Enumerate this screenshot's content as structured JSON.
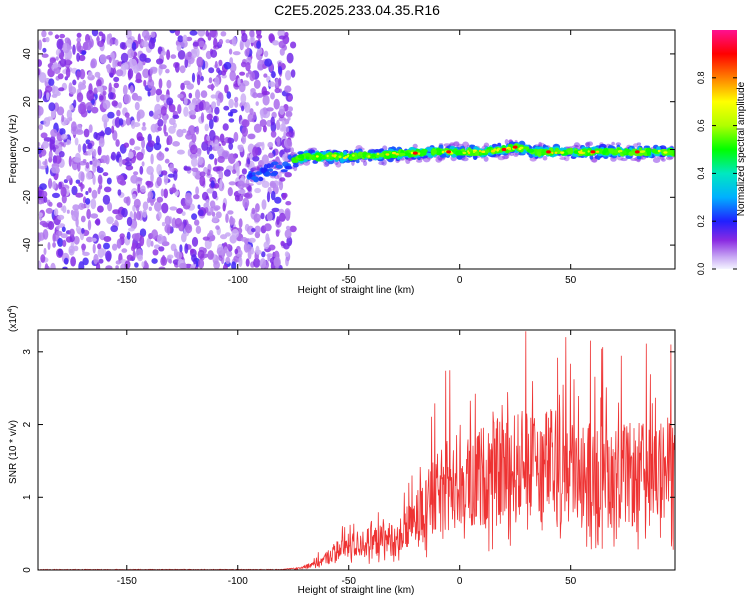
{
  "title": "C2E5.2025.233.04.35.R16",
  "chart_data": [
    {
      "type": "heatmap",
      "name": "spectrogram",
      "xlabel": "Height of straight line (km)",
      "ylabel": "Frequency (Hz)",
      "xlim": [
        -190,
        97
      ],
      "ylim": [
        -50,
        50
      ],
      "xticks": [
        -150,
        -100,
        -50,
        0,
        50
      ],
      "yticks": [
        -40,
        -20,
        0,
        20,
        40
      ],
      "noise_region_x": [
        -190,
        -75
      ],
      "signal_band": {
        "x_start": -95,
        "x_end": 97,
        "centerline": [
          [
            -95,
            -12
          ],
          [
            -80,
            -7
          ],
          [
            -70,
            -3
          ],
          [
            -50,
            -3
          ],
          [
            -30,
            -2
          ],
          [
            -10,
            -1
          ],
          [
            0,
            -1
          ],
          [
            10,
            -1
          ],
          [
            20,
            0
          ],
          [
            25,
            1
          ],
          [
            35,
            -1
          ],
          [
            50,
            -1
          ],
          [
            70,
            -1
          ],
          [
            97,
            -1
          ]
        ],
        "peaks_x": [
          -20,
          -5,
          20,
          25,
          40,
          60,
          80
        ]
      },
      "colorbar": {
        "label": "Normalized spectral amplitude",
        "range": [
          0.0,
          1.0
        ],
        "ticks": [
          0.0,
          0.2,
          0.4,
          0.6,
          0.8
        ]
      }
    },
    {
      "type": "line",
      "name": "snr",
      "xlabel": "Height of straight line (km)",
      "ylabel": "SNR (10 * v/v)",
      "multiplier_label": "(x10",
      "multiplier_exp": "4",
      "multiplier_close": ")",
      "color": "#ee3333",
      "xlim": [
        -190,
        97
      ],
      "ylim": [
        0,
        3.3
      ],
      "xticks": [
        -150,
        -100,
        -50,
        0,
        50
      ],
      "yticks": [
        0,
        1,
        2,
        3
      ],
      "envelope": [
        [
          -190,
          0.0
        ],
        [
          -80,
          0.0
        ],
        [
          -72,
          0.03
        ],
        [
          -62,
          0.15
        ],
        [
          -55,
          0.35
        ],
        [
          -45,
          0.45
        ],
        [
          -35,
          0.5
        ],
        [
          -25,
          0.6
        ],
        [
          -20,
          0.85
        ],
        [
          -12,
          1.2
        ],
        [
          -5,
          1.5
        ],
        [
          5,
          1.55
        ],
        [
          15,
          1.65
        ],
        [
          25,
          1.75
        ],
        [
          40,
          1.8
        ],
        [
          55,
          1.7
        ],
        [
          70,
          1.6
        ],
        [
          85,
          1.65
        ],
        [
          97,
          1.7
        ]
      ]
    }
  ]
}
